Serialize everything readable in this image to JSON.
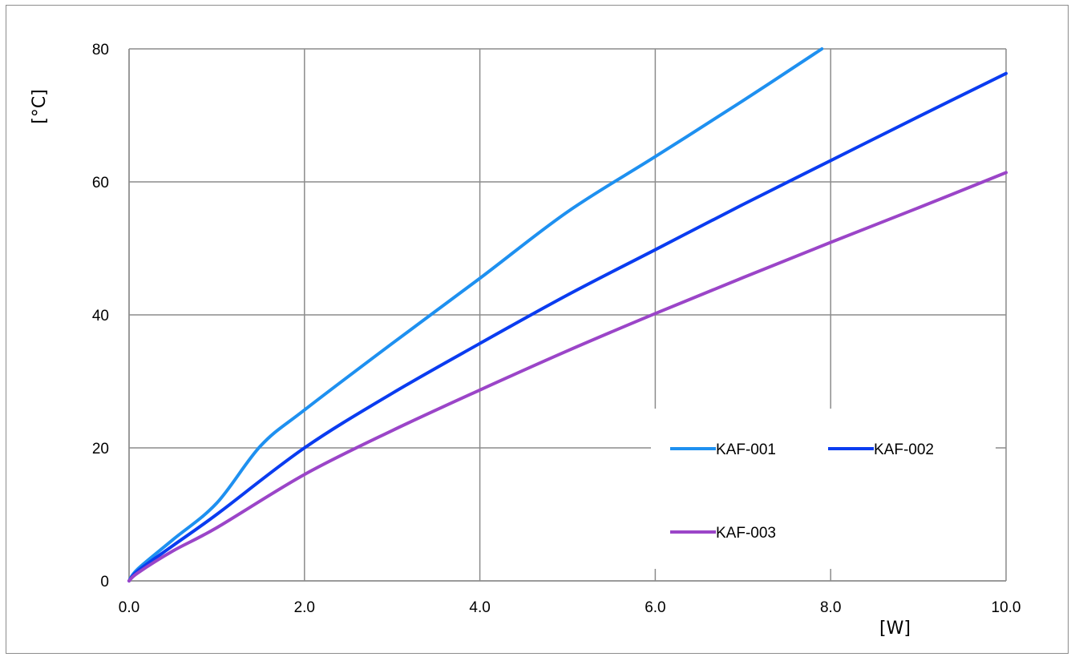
{
  "chart_data": {
    "type": "line",
    "title": "",
    "xlabel": "[W]",
    "ylabel": "[°C]",
    "xlim": [
      0,
      10
    ],
    "ylim": [
      0,
      80
    ],
    "x_ticks": [
      "0.0",
      "2.0",
      "4.0",
      "6.0",
      "8.0",
      "10.0"
    ],
    "y_ticks": [
      "0",
      "20",
      "40",
      "60",
      "80"
    ],
    "grid": true,
    "legend_position": "bottom-right",
    "series": [
      {
        "name": "KAF-001",
        "color": "#1e90f0",
        "points": [
          [
            0,
            0
          ],
          [
            0.1,
            1.8
          ],
          [
            0.5,
            6.2
          ],
          [
            1,
            11.7
          ],
          [
            1.5,
            20.3
          ],
          [
            2,
            25.7
          ],
          [
            3,
            35.7
          ],
          [
            4,
            45.5
          ],
          [
            5,
            55.5
          ],
          [
            6,
            63.8
          ],
          [
            7,
            72.2
          ],
          [
            7.9,
            80
          ]
        ]
      },
      {
        "name": "KAF-002",
        "color": "#0a3cf0",
        "points": [
          [
            0,
            0
          ],
          [
            0.1,
            1.5
          ],
          [
            0.5,
            5.3
          ],
          [
            1,
            10.0
          ],
          [
            2,
            20.0
          ],
          [
            3,
            28.2
          ],
          [
            4,
            35.7
          ],
          [
            5,
            43.0
          ],
          [
            6,
            49.8
          ],
          [
            7,
            56.6
          ],
          [
            8,
            63.2
          ],
          [
            9,
            69.8
          ],
          [
            10,
            76.3
          ]
        ]
      },
      {
        "name": "KAF-003",
        "color": "#9b45c8",
        "points": [
          [
            0,
            0
          ],
          [
            0.1,
            1.2
          ],
          [
            0.5,
            4.5
          ],
          [
            1,
            8.0
          ],
          [
            2,
            16.0
          ],
          [
            3,
            22.6
          ],
          [
            4,
            28.7
          ],
          [
            5,
            34.6
          ],
          [
            6,
            40.2
          ],
          [
            7,
            45.6
          ],
          [
            8,
            50.9
          ],
          [
            9,
            56.1
          ],
          [
            10,
            61.4
          ]
        ]
      }
    ]
  }
}
